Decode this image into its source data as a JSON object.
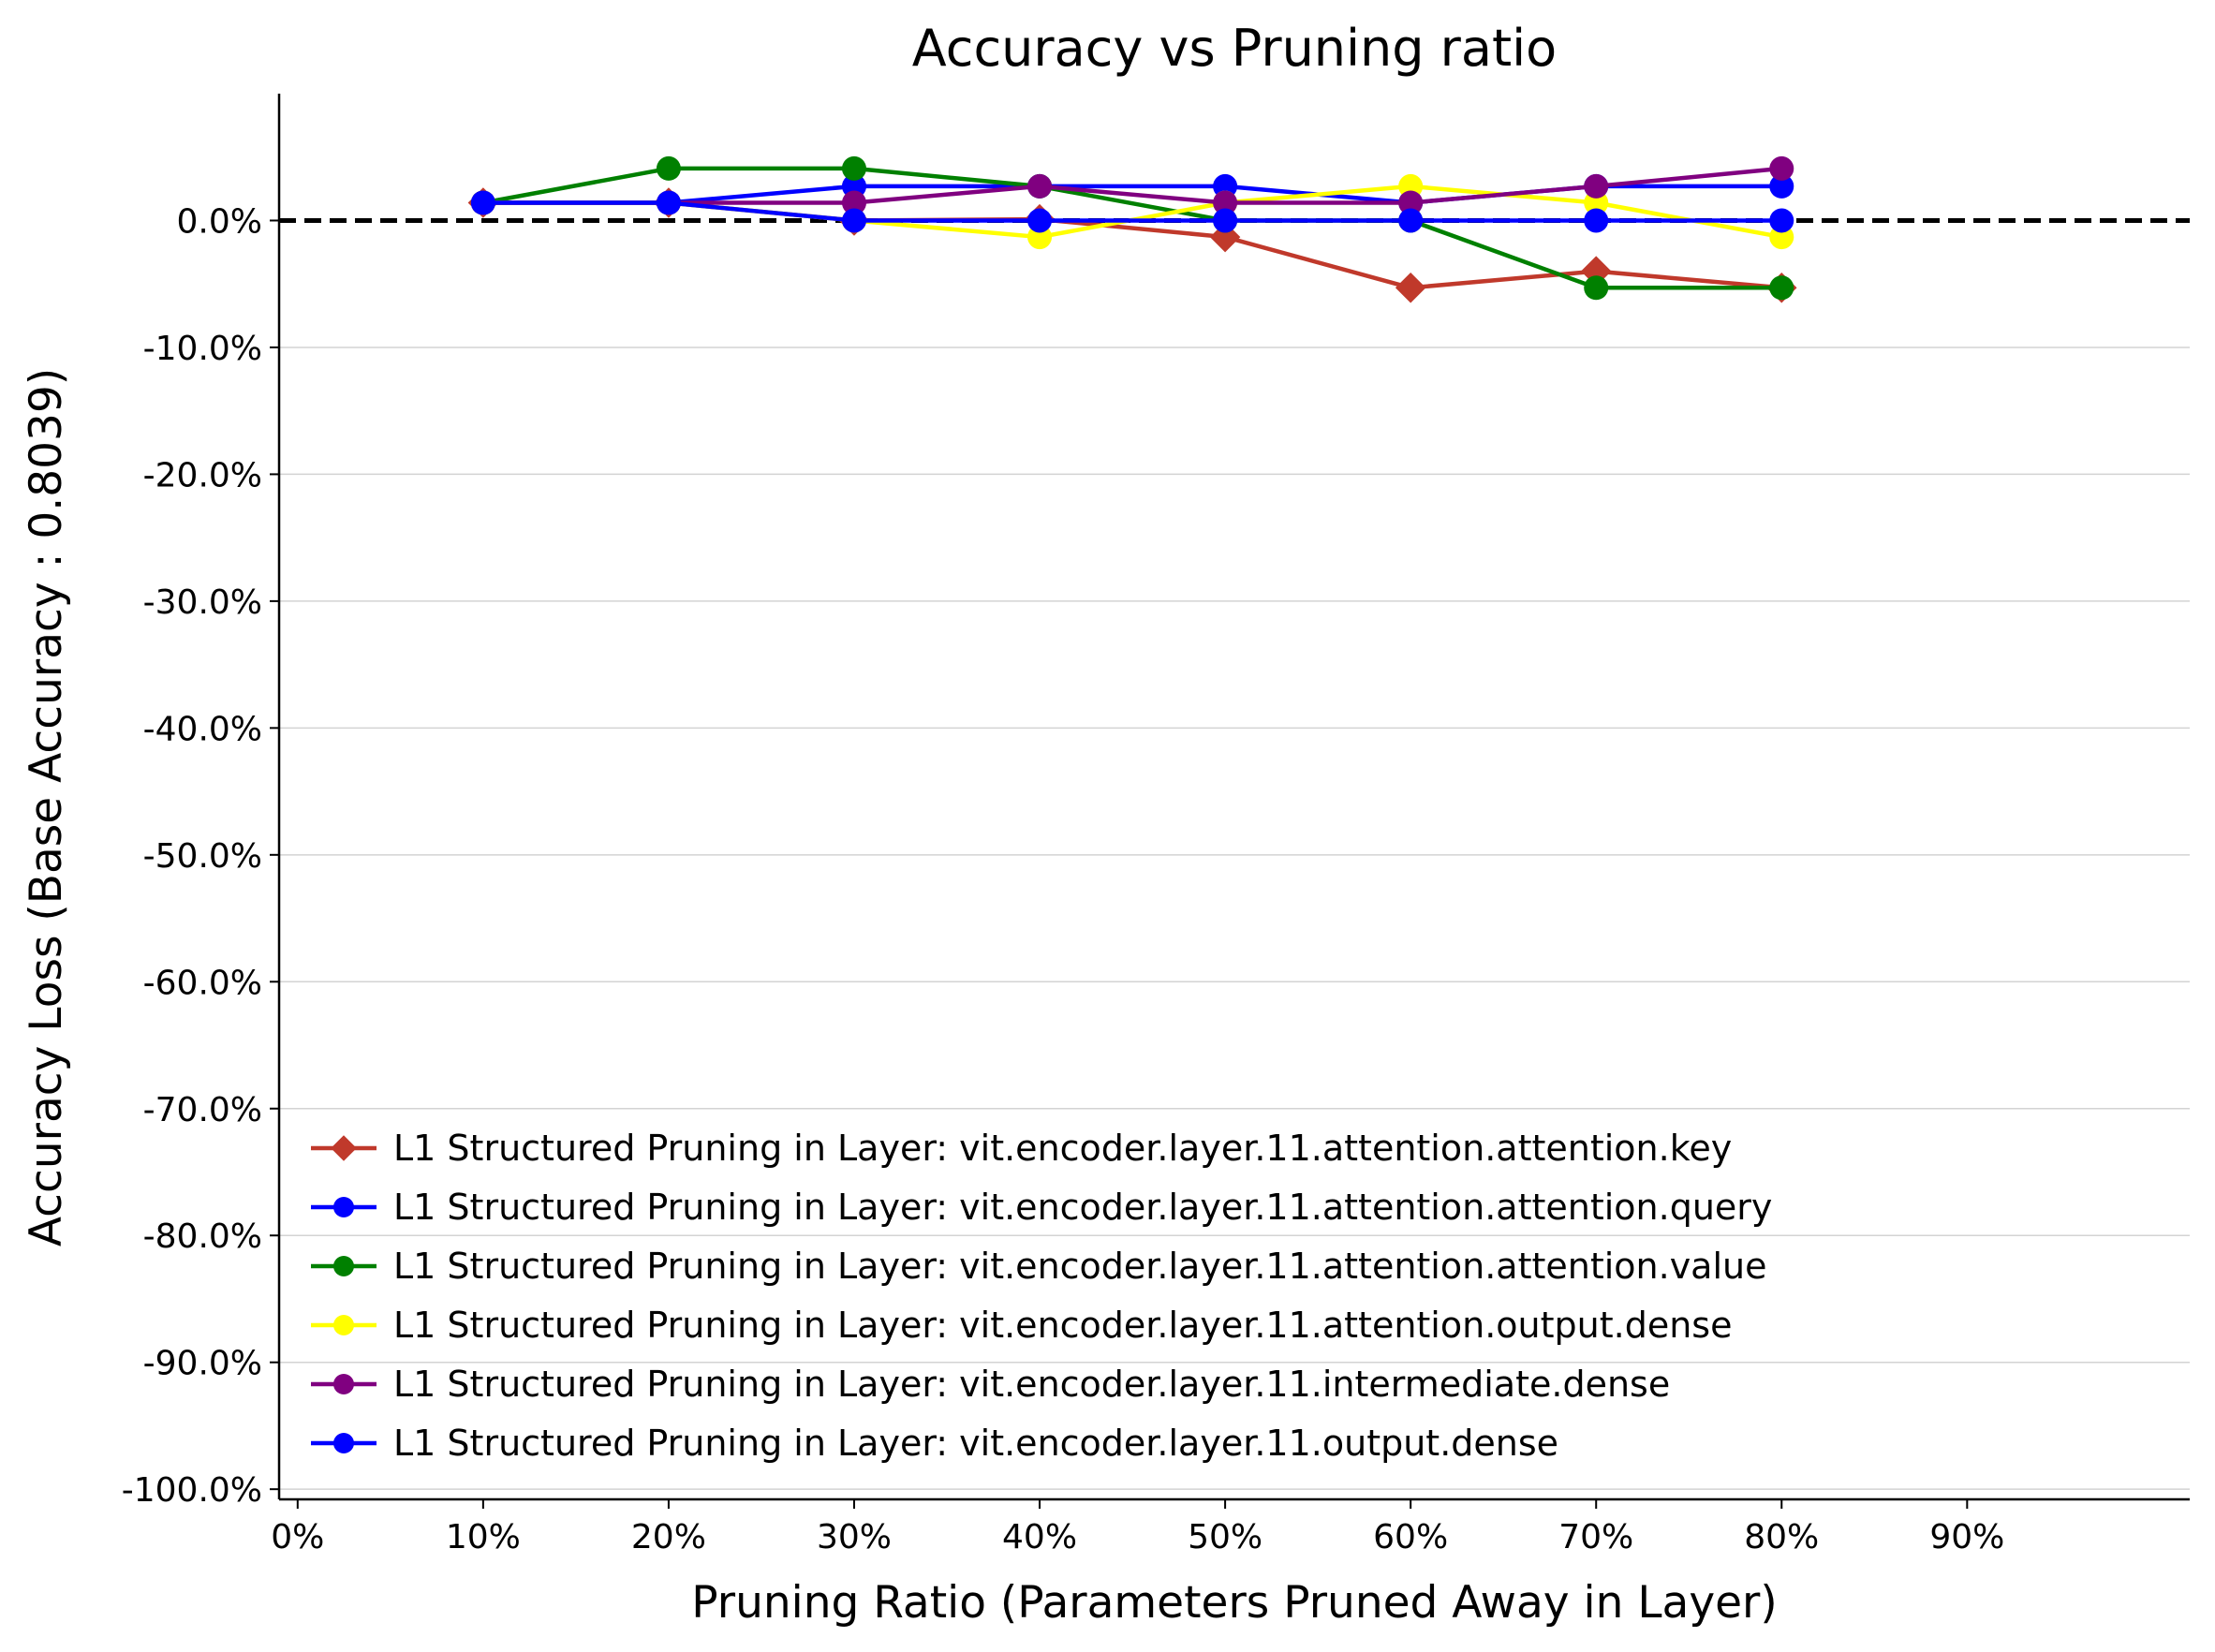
{
  "chart_data": {
    "type": "line",
    "title": "Accuracy vs Pruning ratio",
    "xlabel": "Pruning Ratio (Parameters Pruned Away in Layer)",
    "ylabel": "Accuracy Loss (Base Accuracy : 0.8039)",
    "xlim": [
      -1,
      102
    ],
    "ylim": [
      -100.8,
      10
    ],
    "x_ticks": [
      0,
      10,
      20,
      30,
      40,
      50,
      60,
      70,
      80,
      90
    ],
    "x_tick_labels": [
      "0%",
      "10%",
      "20%",
      "30%",
      "40%",
      "50%",
      "60%",
      "70%",
      "80%",
      "90%"
    ],
    "y_ticks": [
      0,
      -10,
      -20,
      -30,
      -40,
      -50,
      -60,
      -70,
      -80,
      -90,
      -100
    ],
    "y_tick_labels": [
      "0.0%",
      "-10.0%",
      "-20.0%",
      "-30.0%",
      "-40.0%",
      "-50.0%",
      "-60.0%",
      "-70.0%",
      "-80.0%",
      "-90.0%",
      "-100.0%"
    ],
    "grid": "horizontal",
    "reference_line": 0,
    "legend_position": "lower-left",
    "x": [
      10,
      20,
      30,
      40,
      50,
      60,
      70,
      80
    ],
    "series": [
      {
        "name": "L1 Structured Pruning in Layer: vit.encoder.layer.11.attention.attention.key",
        "color": "#c0392b",
        "marker": "diamond",
        "values": [
          1.4,
          1.4,
          0.0,
          0.1,
          -1.3,
          -5.3,
          -4.0,
          -5.3
        ]
      },
      {
        "name": "L1 Structured Pruning in Layer: vit.encoder.layer.11.attention.attention.query",
        "color": "#0000ff",
        "marker": "circle",
        "values": [
          1.4,
          1.4,
          2.7,
          2.7,
          2.7,
          1.4,
          2.7,
          2.7
        ]
      },
      {
        "name": "L1 Structured Pruning in Layer: vit.encoder.layer.11.attention.attention.value",
        "color": "#008000",
        "marker": "circle",
        "values": [
          1.4,
          4.1,
          4.1,
          2.7,
          0.0,
          0.0,
          -5.3,
          -5.3
        ]
      },
      {
        "name": "L1 Structured Pruning in Layer: vit.encoder.layer.11.attention.output.dense",
        "color": "#ffff00",
        "marker": "circle",
        "values": [
          1.4,
          1.4,
          0.0,
          -1.3,
          1.4,
          2.7,
          1.4,
          -1.3
        ]
      },
      {
        "name": "L1 Structured Pruning in Layer: vit.encoder.layer.11.intermediate.dense",
        "color": "#800080",
        "marker": "circle",
        "values": [
          1.4,
          1.4,
          1.4,
          2.7,
          1.4,
          1.4,
          2.7,
          4.1
        ]
      },
      {
        "name": "L1 Structured Pruning in Layer: vit.encoder.layer.11.output.dense",
        "color": "#0000ff",
        "marker": "circle",
        "values": [
          1.4,
          1.4,
          0.0,
          0.0,
          0.0,
          0.0,
          0.0,
          0.0
        ]
      }
    ]
  }
}
